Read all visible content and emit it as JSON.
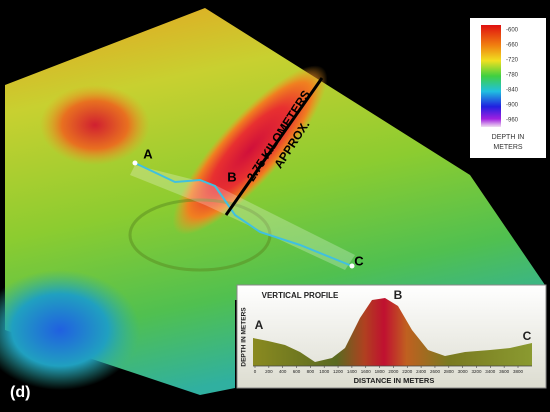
{
  "figure_label": "(d)",
  "terrain": {
    "points": {
      "a": "A",
      "b": "B",
      "c": "C"
    },
    "annotation": [
      "2.75 KILOMETERS",
      "APPROX."
    ]
  },
  "legend": {
    "ticks": [
      -600,
      -660,
      -720,
      -780,
      -840,
      -900,
      -960
    ],
    "title": [
      "DEPTH IN",
      "METERS"
    ]
  },
  "profile": {
    "title": "VERTICAL PROFILE",
    "y_label": "DEPTH IN METERS",
    "x_label": "DISTANCE IN METERS",
    "xticks": [
      0,
      200,
      400,
      600,
      800,
      1000,
      1200,
      1400,
      1600,
      1800,
      2000,
      2200,
      2400,
      2600,
      2800,
      3000,
      3200,
      3400,
      3600,
      3800
    ],
    "points": {
      "a": "A",
      "b": "B",
      "c": "C"
    }
  }
}
